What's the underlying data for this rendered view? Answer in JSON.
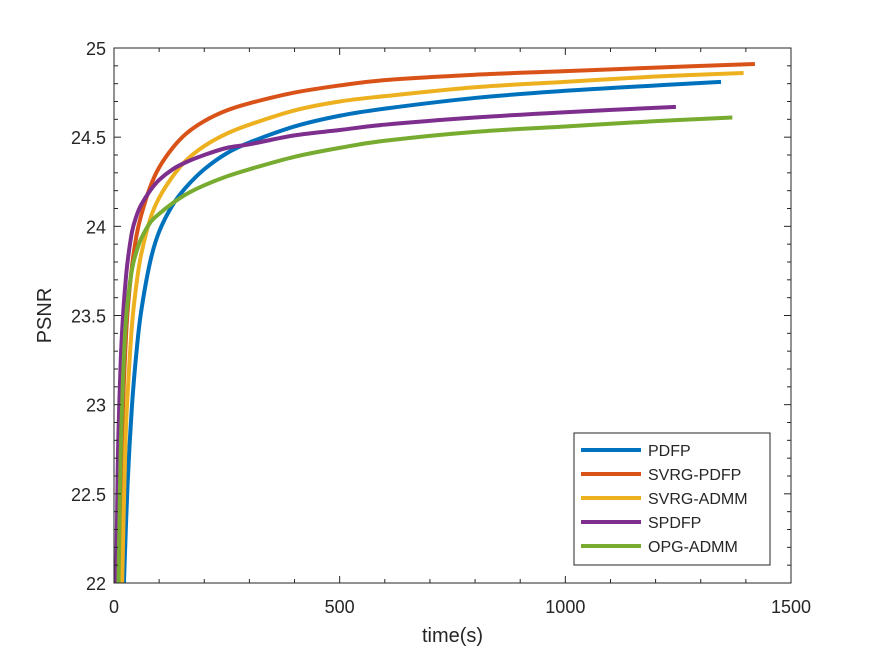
{
  "chart_data": {
    "type": "line",
    "title": "",
    "xlabel": "time(s)",
    "ylabel": "PSNR",
    "xlim": [
      0,
      1500
    ],
    "ylim": [
      22,
      25
    ],
    "xticks": [
      0,
      500,
      1000,
      1500
    ],
    "yticks": [
      22,
      22.5,
      23,
      23.5,
      24,
      24.5,
      25
    ],
    "xtick_labels": [
      "0",
      "500",
      "1000",
      "1500"
    ],
    "ytick_labels": [
      "22",
      "22.5",
      "23",
      "23.5",
      "24",
      "24.5",
      "25"
    ],
    "grid": false,
    "legend_position": "bottom-right",
    "series": [
      {
        "name": "PDFP",
        "color": "#0072BD",
        "x": [
          22,
          30,
          40,
          50,
          60,
          80,
          100,
          130,
          160,
          200,
          250,
          300,
          400,
          500,
          600,
          800,
          1000,
          1200,
          1345
        ],
        "y": [
          22.0,
          22.55,
          23.0,
          23.3,
          23.52,
          23.8,
          23.97,
          24.12,
          24.22,
          24.32,
          24.41,
          24.47,
          24.56,
          24.62,
          24.66,
          24.72,
          24.76,
          24.79,
          24.81
        ]
      },
      {
        "name": "SVRG-PDFP",
        "color": "#D95319",
        "x": [
          12,
          16,
          20,
          25,
          30,
          40,
          50,
          60,
          80,
          100,
          130,
          160,
          200,
          250,
          300,
          400,
          500,
          600,
          800,
          1000,
          1200,
          1420
        ],
        "y": [
          22.0,
          22.6,
          23.0,
          23.3,
          23.52,
          23.78,
          23.95,
          24.06,
          24.22,
          24.33,
          24.44,
          24.52,
          24.59,
          24.65,
          24.69,
          24.75,
          24.79,
          24.82,
          24.85,
          24.87,
          24.89,
          24.91
        ]
      },
      {
        "name": "SVRG-ADMM",
        "color": "#EDB120",
        "x": [
          18,
          25,
          30,
          40,
          50,
          60,
          80,
          100,
          130,
          160,
          200,
          250,
          300,
          400,
          500,
          600,
          800,
          1000,
          1200,
          1395
        ],
        "y": [
          22.0,
          22.75,
          23.05,
          23.45,
          23.68,
          23.84,
          24.04,
          24.16,
          24.28,
          24.37,
          24.45,
          24.52,
          24.57,
          24.65,
          24.7,
          24.73,
          24.78,
          24.81,
          24.84,
          24.86
        ]
      },
      {
        "name": "SPDFP",
        "color": "#7E2F8E",
        "x": [
          5,
          8,
          10,
          15,
          20,
          25,
          30,
          40,
          50,
          60,
          80,
          100,
          130,
          160,
          200,
          250,
          300,
          400,
          500,
          600,
          800,
          1000,
          1245
        ],
        "y": [
          22.0,
          22.6,
          22.85,
          23.25,
          23.5,
          23.67,
          23.8,
          23.97,
          24.06,
          24.12,
          24.2,
          24.26,
          24.32,
          24.36,
          24.4,
          24.44,
          24.46,
          24.51,
          24.54,
          24.57,
          24.61,
          24.64,
          24.67
        ]
      },
      {
        "name": "OPG-ADMM",
        "color": "#77AC30",
        "x": [
          10,
          13,
          16,
          20,
          25,
          30,
          40,
          50,
          60,
          80,
          100,
          130,
          160,
          200,
          250,
          300,
          400,
          500,
          600,
          800,
          1000,
          1200,
          1370
        ],
        "y": [
          22.0,
          22.5,
          22.85,
          23.15,
          23.42,
          23.57,
          23.76,
          23.86,
          23.93,
          24.02,
          24.07,
          24.13,
          24.18,
          24.23,
          24.28,
          24.32,
          24.39,
          24.44,
          24.48,
          24.53,
          24.56,
          24.59,
          24.61
        ]
      }
    ]
  }
}
